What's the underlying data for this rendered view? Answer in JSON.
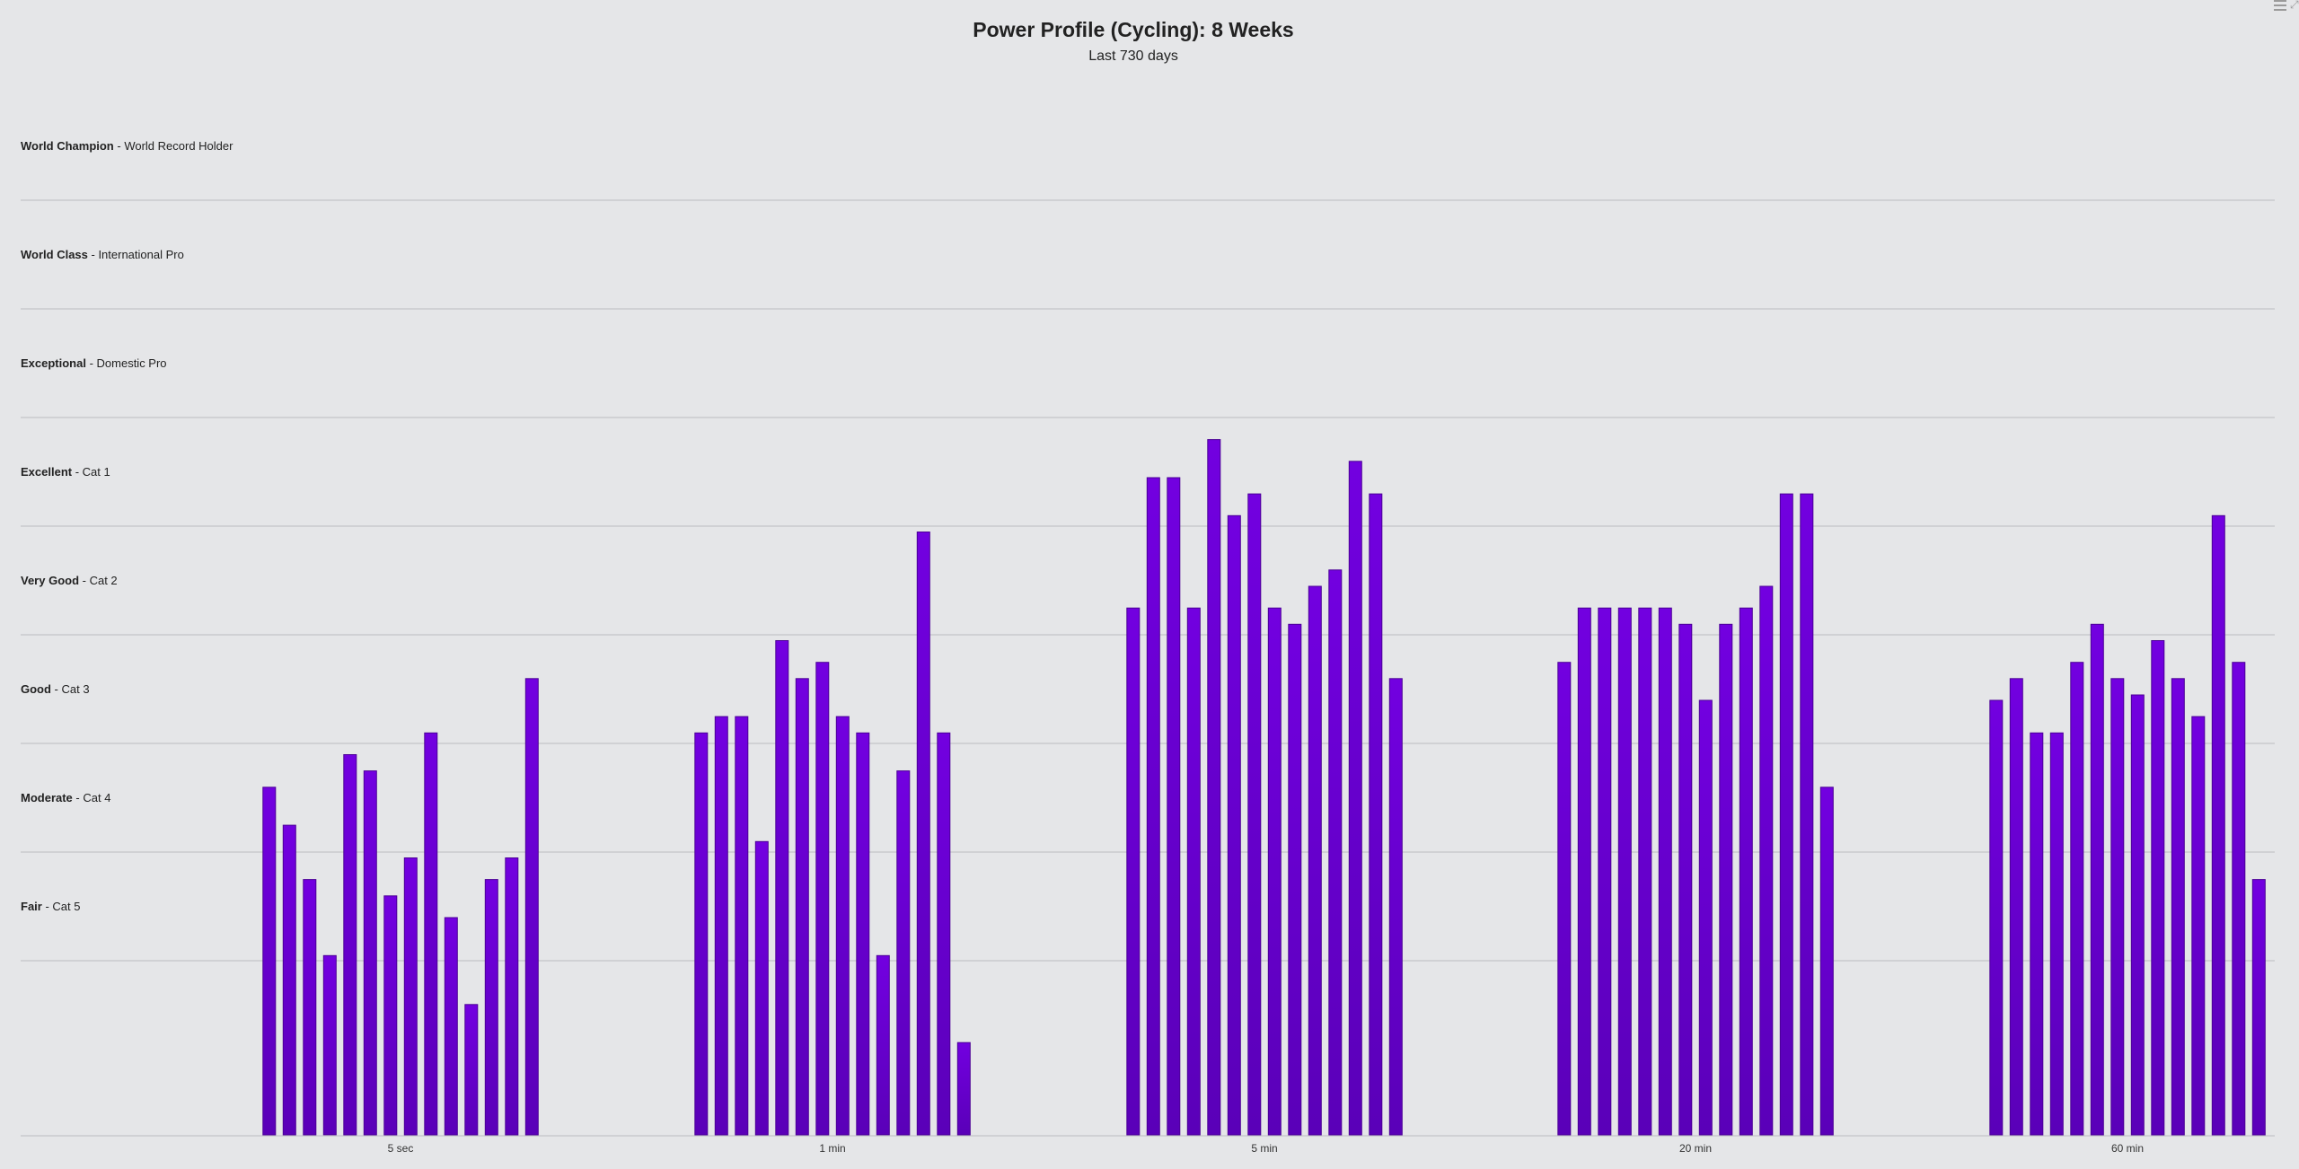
{
  "chart_data": {
    "type": "bar",
    "title": "Power Profile (Cycling): 8 Weeks",
    "subtitle": "Last 730 days",
    "categories": [
      "5 sec",
      "1 min",
      "5 min",
      "20 min",
      "60 min"
    ],
    "bands": [
      {
        "name": "World Champion",
        "desc": "World Record Holder"
      },
      {
        "name": "World Class",
        "desc": "International Pro"
      },
      {
        "name": "Exceptional",
        "desc": "Domestic Pro"
      },
      {
        "name": "Excellent",
        "desc": "Cat 1"
      },
      {
        "name": "Very Good",
        "desc": "Cat 2"
      },
      {
        "name": "Good",
        "desc": "Cat 3"
      },
      {
        "name": "Moderate",
        "desc": "Cat 4"
      },
      {
        "name": "Fair",
        "desc": "Cat 5"
      }
    ],
    "band_separator_lines": 8,
    "ylim": [
      0,
      9.6
    ],
    "groups": [
      {
        "category": "5 sec",
        "values": [
          3.2,
          2.85,
          2.35,
          1.65,
          3.5,
          3.35,
          2.2,
          2.55,
          3.7,
          2.0,
          1.2,
          2.35,
          2.55,
          4.2
        ]
      },
      {
        "category": "1 min",
        "values": [
          3.7,
          3.85,
          3.85,
          2.7,
          4.55,
          4.2,
          4.35,
          3.85,
          3.7,
          1.65,
          3.35,
          5.55,
          3.7,
          0.85
        ]
      },
      {
        "category": "5 min",
        "values": [
          4.85,
          6.05,
          6.05,
          4.85,
          6.4,
          5.7,
          5.9,
          4.85,
          4.7,
          5.05,
          5.2,
          6.2,
          5.9,
          4.2
        ]
      },
      {
        "category": "20 min",
        "values": [
          4.35,
          4.85,
          4.85,
          4.85,
          4.85,
          4.85,
          4.7,
          4.0,
          4.7,
          4.85,
          5.05,
          5.9,
          5.9,
          3.2
        ]
      },
      {
        "category": "60 min",
        "values": [
          4.0,
          4.2,
          3.7,
          3.7,
          4.35,
          4.7,
          4.2,
          4.05,
          4.55,
          4.2,
          3.85,
          5.7,
          4.35,
          2.35
        ]
      }
    ],
    "bar_color": "#6b00d7",
    "bar_color_dark": "#4b0096",
    "grid": true,
    "legend": "none"
  },
  "toolbar": {
    "menu_icon": "hamburger-menu-icon",
    "expand_icon": "expand-icon"
  }
}
